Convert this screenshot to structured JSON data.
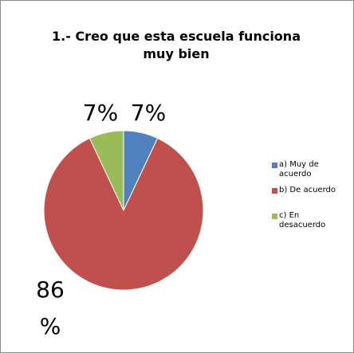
{
  "chart_data": {
    "type": "pie",
    "title": "1.- Creo que esta escuela funciona muy bien",
    "categories": [
      "a) Muy de acuerdo",
      "b) De acuerdo",
      "c) En desacuerdo"
    ],
    "values": [
      7,
      86,
      7
    ],
    "value_labels": [
      "7%",
      "86 %",
      "7%"
    ],
    "colors": [
      "#4f81bd",
      "#c0504d",
      "#9bbb59"
    ],
    "legend": "right"
  }
}
